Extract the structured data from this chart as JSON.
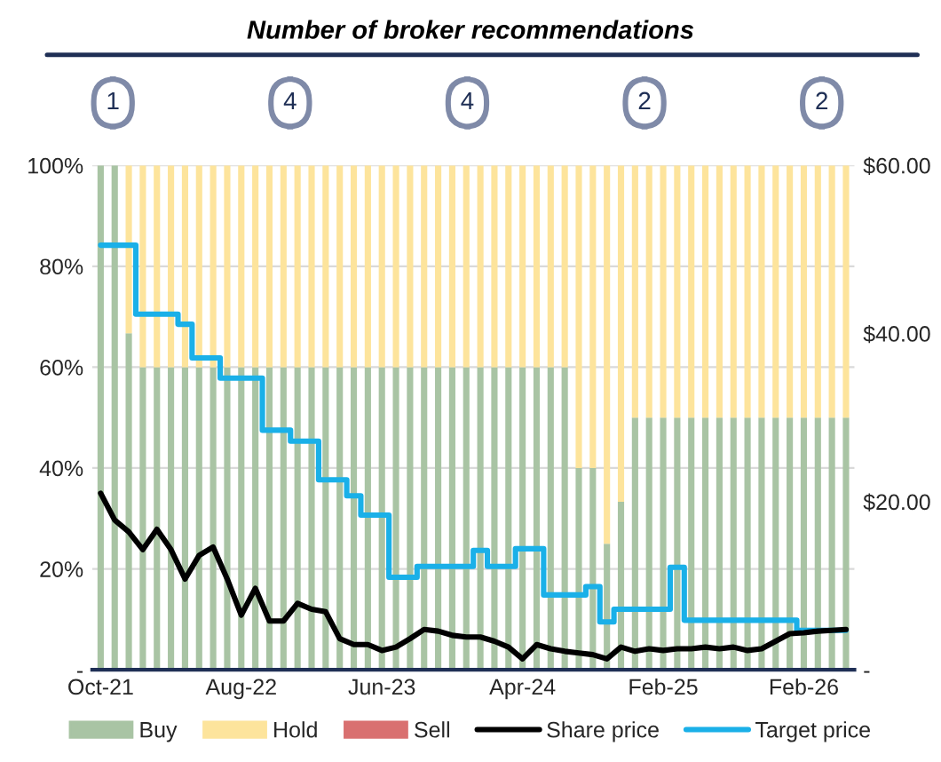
{
  "chart_data": {
    "type": "bar",
    "title": "Number of broker recommendations",
    "annotations": [
      "1",
      "4",
      "4",
      "2",
      "2"
    ],
    "categories": [
      "Oct-21",
      null,
      null,
      null,
      null,
      null,
      null,
      null,
      null,
      null,
      "Aug-22",
      null,
      null,
      null,
      null,
      null,
      null,
      null,
      null,
      null,
      "Jun-23",
      null,
      null,
      null,
      null,
      null,
      null,
      null,
      null,
      null,
      "Apr-24",
      null,
      null,
      null,
      null,
      null,
      null,
      null,
      null,
      null,
      "Feb-25",
      null,
      null,
      null,
      null,
      null,
      null,
      null,
      null,
      null,
      "Feb-26",
      null,
      null,
      null
    ],
    "stacked": true,
    "series": [
      {
        "name": "Buy",
        "color": "#a9c4a4",
        "values": [
          100,
          100,
          66.7,
          60,
          60,
          60,
          60,
          60,
          60,
          60,
          60,
          60,
          60,
          60,
          60,
          60,
          60,
          60,
          60,
          60,
          60,
          60,
          60,
          60,
          60,
          60,
          60,
          60,
          60,
          60,
          60,
          60,
          60,
          60,
          40,
          40,
          25,
          33.3,
          50,
          50,
          50,
          50,
          50,
          50,
          50,
          50,
          50,
          50,
          50,
          50,
          50,
          50,
          50,
          50
        ]
      },
      {
        "name": "Hold",
        "color": "#fde49c",
        "values": [
          0,
          0,
          33.3,
          40,
          40,
          40,
          40,
          40,
          40,
          40,
          40,
          40,
          40,
          40,
          40,
          40,
          40,
          40,
          40,
          40,
          40,
          40,
          40,
          40,
          40,
          40,
          40,
          40,
          40,
          40,
          40,
          40,
          40,
          40,
          60,
          60,
          75,
          66.7,
          50,
          50,
          50,
          50,
          50,
          50,
          50,
          50,
          50,
          50,
          50,
          50,
          50,
          50,
          50,
          50
        ]
      },
      {
        "name": "Sell",
        "color": "#d97070",
        "values": [
          0,
          0,
          0,
          0,
          0,
          0,
          0,
          0,
          0,
          0,
          0,
          0,
          0,
          0,
          0,
          0,
          0,
          0,
          0,
          0,
          0,
          0,
          0,
          0,
          0,
          0,
          0,
          0,
          0,
          0,
          0,
          0,
          0,
          0,
          0,
          0,
          0,
          0,
          0,
          0,
          0,
          0,
          0,
          0,
          0,
          0,
          0,
          0,
          0,
          0,
          0,
          0,
          0,
          0
        ]
      },
      {
        "name": "Share price",
        "type": "line",
        "axis": "y2",
        "color": "#000000",
        "values": [
          21,
          17.8,
          16.4,
          14.3,
          16.7,
          14.3,
          10.8,
          13.6,
          14.6,
          10.8,
          6.5,
          9.7,
          5.8,
          5.8,
          7.9,
          7.2,
          6.9,
          3.7,
          3.0,
          3.0,
          2.3,
          2.7,
          3.7,
          4.8,
          4.6,
          4.1,
          3.9,
          3.9,
          3.4,
          2.7,
          1.3,
          3.0,
          2.5,
          2.2,
          2.0,
          1.8,
          1.3,
          2.7,
          2.2,
          2.5,
          2.3,
          2.5,
          2.5,
          2.7,
          2.5,
          2.7,
          2.3,
          2.5,
          3.4,
          4.3,
          4.4,
          4.6,
          4.7,
          4.8
        ]
      },
      {
        "name": "Target price",
        "type": "step",
        "axis": "y2",
        "color": "#1ab0e8",
        "values": [
          50.5,
          50.5,
          50.5,
          42.3,
          42.3,
          42.3,
          41.1,
          37.1,
          37.1,
          34.7,
          34.7,
          34.7,
          28.5,
          28.5,
          27.2,
          27.2,
          22.6,
          22.6,
          20.7,
          18.4,
          18.4,
          11,
          11,
          12.3,
          12.3,
          12.3,
          12.3,
          14.2,
          12.3,
          12.3,
          14.4,
          14.4,
          8.9,
          8.9,
          8.9,
          9.9,
          5.7,
          7.2,
          7.2,
          7.2,
          7.2,
          12.2,
          5.9,
          5.9,
          5.9,
          5.9,
          5.9,
          5.9,
          5.9,
          5.9,
          4.7,
          4.7,
          4.7,
          4.7
        ]
      }
    ],
    "ylim": [
      0,
      100
    ],
    "yticks": [
      {
        "value": 0,
        "label": "-"
      },
      {
        "value": 20,
        "label": "20%"
      },
      {
        "value": 40,
        "label": "40%"
      },
      {
        "value": 60,
        "label": "60%"
      },
      {
        "value": 80,
        "label": "80%"
      },
      {
        "value": 100,
        "label": "100%"
      }
    ],
    "y2lim": [
      0,
      60
    ],
    "y2ticks": [
      {
        "value": 0,
        "label": "-"
      },
      {
        "value": 20,
        "label": "$20.00"
      },
      {
        "value": 40,
        "label": "$40.00"
      },
      {
        "value": 60,
        "label": "$60.00"
      }
    ],
    "grid": "y",
    "legend": "bottom"
  }
}
